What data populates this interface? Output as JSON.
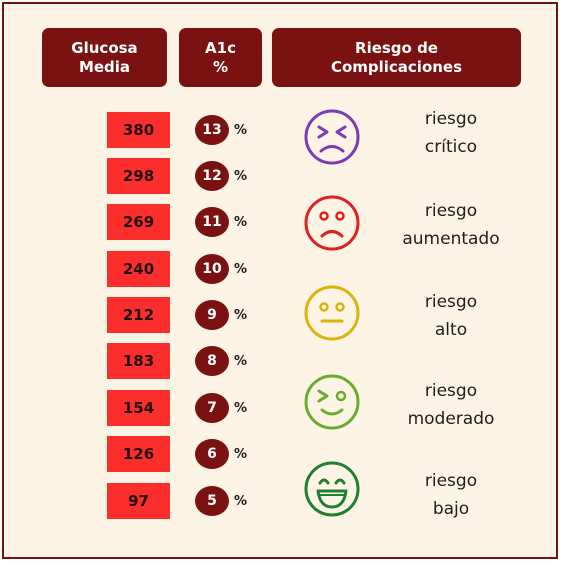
{
  "headers": {
    "glucose": {
      "line1": "Glucosa",
      "line2": "Media"
    },
    "a1c": {
      "line1": "A1c",
      "line2": "%"
    },
    "risk": {
      "line1": "Riesgo de",
      "line2": "Complicaciones"
    }
  },
  "rows": [
    {
      "glucose": "380",
      "a1c": "13",
      "pct": "%"
    },
    {
      "glucose": "298",
      "a1c": "12",
      "pct": "%"
    },
    {
      "glucose": "269",
      "a1c": "11",
      "pct": "%"
    },
    {
      "glucose": "240",
      "a1c": "10",
      "pct": "%"
    },
    {
      "glucose": "212",
      "a1c": "9",
      "pct": "%"
    },
    {
      "glucose": "183",
      "a1c": "8",
      "pct": "%"
    },
    {
      "glucose": "154",
      "a1c": "7",
      "pct": "%"
    },
    {
      "glucose": "126",
      "a1c": "6",
      "pct": "%"
    },
    {
      "glucose": "97",
      "a1c": "5",
      "pct": "%"
    }
  ],
  "risks": [
    {
      "line1": "riesgo",
      "line2": "crítico",
      "face": "squinting-face-icon",
      "color": "#7a3bb8"
    },
    {
      "line1": "riesgo",
      "line2": "aumentado",
      "face": "frowning-face-icon",
      "color": "#e02020"
    },
    {
      "line1": "riesgo",
      "line2": "alto",
      "face": "neutral-face-icon",
      "color": "#d8b40c"
    },
    {
      "line1": "riesgo",
      "line2": "moderado",
      "face": "winking-face-icon",
      "color": "#6aac2e"
    },
    {
      "line1": "riesgo",
      "line2": "bajo",
      "face": "laughing-face-icon",
      "color": "#1e8030"
    }
  ],
  "colors": {
    "header_bg": "#7b1212",
    "glucose_box": "#fb2d2d",
    "a1c_circle": "#7b1212",
    "background": "#fdf4e5"
  }
}
